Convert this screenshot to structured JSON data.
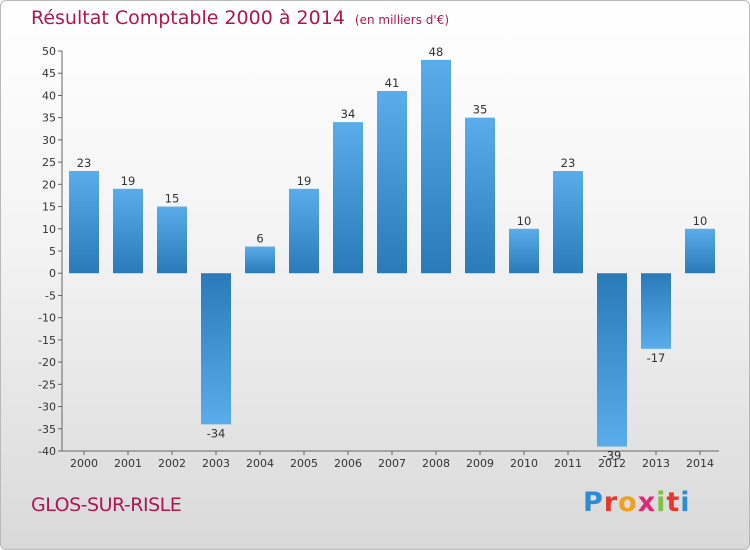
{
  "header": {
    "title": "Résultat Comptable 2000 à 2014",
    "subtitle": "(en milliers d'€)"
  },
  "footer": {
    "town": "GLOS-SUR-RISLE",
    "brand": [
      "P",
      "r",
      "o",
      "x",
      "i",
      "t",
      "i"
    ]
  },
  "colors": {
    "title": "#b0174f",
    "bar_light": "#5aacea",
    "bar_dark": "#2a7ab9",
    "brand": [
      "#2f8ad6",
      "#e8382c",
      "#f0a020",
      "#e0287a",
      "#7cc242",
      "#e8382c",
      "#2f8ad6"
    ]
  },
  "chart_data": {
    "type": "bar",
    "title": "Résultat Comptable 2000 à 2014",
    "subtitle": "(en milliers d'€)",
    "xlabel": "",
    "ylabel": "",
    "categories": [
      "2000",
      "2001",
      "2002",
      "2003",
      "2004",
      "2005",
      "2006",
      "2007",
      "2008",
      "2009",
      "2010",
      "2011",
      "2012",
      "2013",
      "2014"
    ],
    "values": [
      23,
      19,
      15,
      -34,
      6,
      19,
      34,
      41,
      48,
      35,
      10,
      23,
      -39,
      -17,
      10
    ],
    "data_labels": [
      "23",
      "19",
      "15",
      "-34",
      "6",
      "19",
      "34",
      "41",
      "48",
      "35",
      "10",
      "23",
      "-39",
      "-17",
      "10"
    ],
    "ylim": [
      -40,
      50
    ],
    "yticks": [
      -40,
      -35,
      -30,
      -25,
      -20,
      -15,
      -10,
      -5,
      0,
      5,
      10,
      15,
      20,
      25,
      30,
      35,
      40,
      45,
      50
    ],
    "grid": false
  }
}
